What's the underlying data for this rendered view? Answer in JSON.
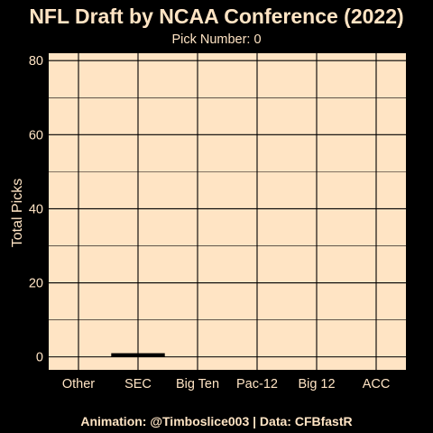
{
  "chart_data": {
    "type": "bar",
    "title": "NFL Draft by NCAA Conference (2022)",
    "subtitle": "Pick Number: 0",
    "xlabel": "",
    "ylabel": "Total Picks",
    "caption": "Animation: @Timboslice003 | Data: CFBfastR",
    "categories": [
      "Other",
      "SEC",
      "Big Ten",
      "Pac-12",
      "Big 12",
      "ACC"
    ],
    "values": [
      0,
      1,
      0,
      0,
      0,
      0
    ],
    "ylim": [
      -3.5,
      82
    ],
    "yticks": [
      0,
      20,
      40,
      60,
      80
    ],
    "grid": true,
    "legend": "none",
    "colors": {
      "background": "#000000",
      "panel": "#FFE4C4",
      "grid": "#000000",
      "bar": "#000000",
      "text": "#FFE4C4"
    }
  }
}
